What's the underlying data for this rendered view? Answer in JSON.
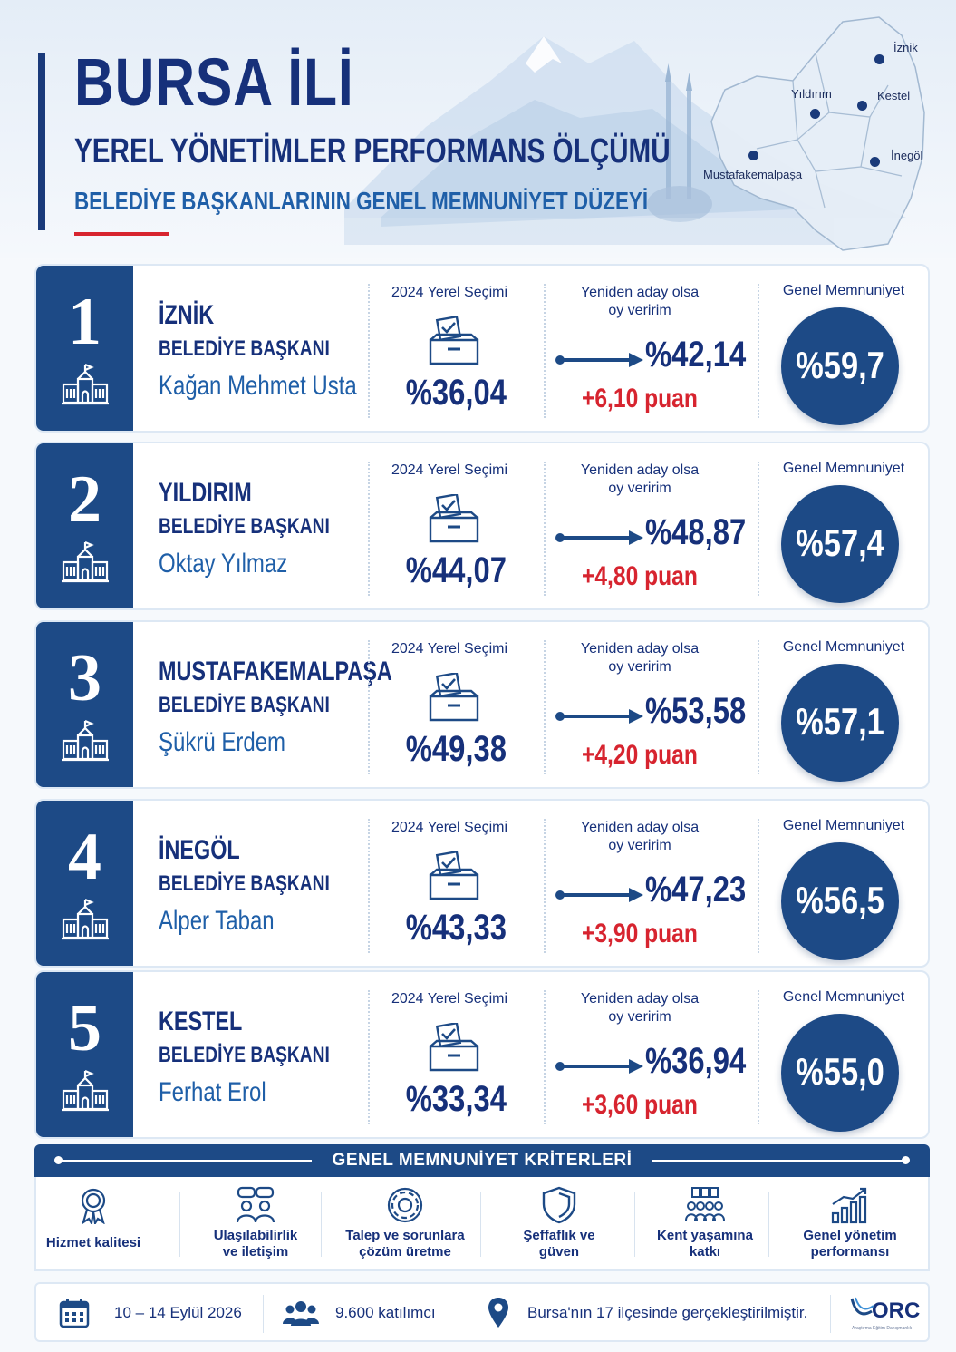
{
  "header": {
    "title": "BURSA İLİ",
    "subtitle": "YEREL YÖNETİMLER PERFORMANS ÖLÇÜMÜ",
    "subtitle2": "BELEDİYE BAŞKANLARININ GENEL MEMNUNİYET DÜZEYİ"
  },
  "map": {
    "labels": [
      "İznik",
      "Yıldırım",
      "Kestel",
      "İnegöl",
      "Mustafakemalpaşa"
    ]
  },
  "column_labels": {
    "election": "2024 Yerel Seçimi",
    "again_line1": "Yeniden aday olsa",
    "again_line2": "oy veririm",
    "satisfaction": "Genel Memnuniyet"
  },
  "rows": [
    {
      "rank": "1",
      "district": "İZNİK",
      "role": "BELEDİYE BAŞKANI",
      "name": "Kağan Mehmet Usta",
      "election": "%36,04",
      "again": "%42,14",
      "delta": "+6,10 puan",
      "satisfaction": "%59,7"
    },
    {
      "rank": "2",
      "district": "YILDIRIM",
      "role": "BELEDİYE BAŞKANI",
      "name": "Oktay Yılmaz",
      "election": "%44,07",
      "again": "%48,87",
      "delta": "+4,80 puan",
      "satisfaction": "%57,4"
    },
    {
      "rank": "3",
      "district": "MUSTAFAKEMALPAŞA",
      "role": "BELEDİYE BAŞKANI",
      "name": "Şükrü Erdem",
      "election": "%49,38",
      "again": "%53,58",
      "delta": "+4,20 puan",
      "satisfaction": "%57,1"
    },
    {
      "rank": "4",
      "district": "İNEGÖL",
      "role": "BELEDİYE BAŞKANI",
      "name": "Alper Taban",
      "election": "%43,33",
      "again": "%47,23",
      "delta": "+3,90 puan",
      "satisfaction": "%56,5"
    },
    {
      "rank": "5",
      "district": "KESTEL",
      "role": "BELEDİYE BAŞKANI",
      "name": "Ferhat Erol",
      "election": "%33,34",
      "again": "%36,94",
      "delta": "+3,60 puan",
      "satisfaction": "%55,0"
    }
  ],
  "criteria": {
    "title": "GENEL MEMNUNİYET KRİTERLERİ",
    "items": [
      {
        "line1": "Hizmet kalitesi",
        "line2": "",
        "icon": "award-icon"
      },
      {
        "line1": "Ulaşılabilirlik",
        "line2": "ve iletişim",
        "icon": "people-chat-icon"
      },
      {
        "line1": "Talep ve sorunlara",
        "line2": "çözüm üretme",
        "icon": "gear-icon"
      },
      {
        "line1": "Şeffaflık ve",
        "line2": "güven",
        "icon": "shield-icon"
      },
      {
        "line1": "Kent yaşamına",
        "line2": "katkı",
        "icon": "community-icon"
      },
      {
        "line1": "Genel yönetim",
        "line2": "performansı",
        "icon": "growth-chart-icon"
      }
    ]
  },
  "footer": {
    "dates": "10 – 14 Eylül 2026",
    "participants": "9.600 katılımcı",
    "scope": "Bursa'nın 17 ilçesinde gerçekleştirilmiştir.",
    "logo": "ORC",
    "logo_sub": "Araştırma Eğitim Danışmanlık"
  },
  "colors": {
    "navy": "#16307a",
    "accent_blue": "#1d4a86",
    "red": "#d7242f"
  }
}
